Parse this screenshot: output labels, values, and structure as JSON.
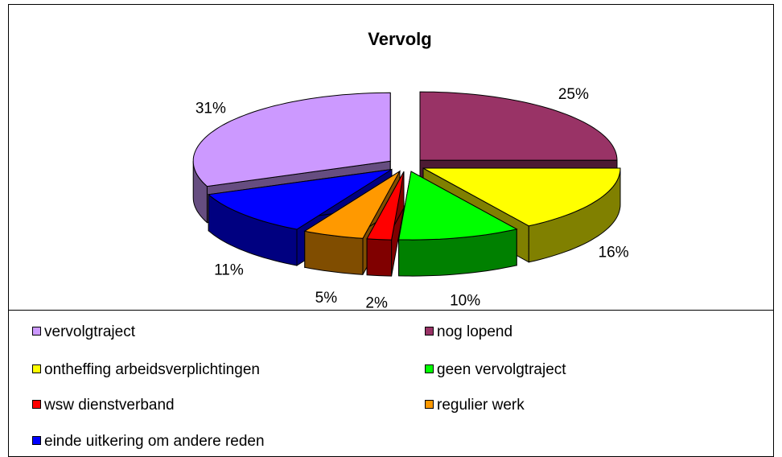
{
  "chart_data": {
    "type": "pie3d",
    "title": "Vervolg",
    "categories": [
      "vervolgtraject",
      "nog lopend",
      "ontheffing arbeidsverplichtingen",
      "geen vervolgtraject",
      "wsw dienstverband",
      "regulier werk",
      "einde uitkering om andere reden"
    ],
    "values": [
      31,
      25,
      16,
      10,
      2,
      5,
      11
    ],
    "value_labels": [
      "31%",
      "25%",
      "16%",
      "10%",
      "2%",
      "5%",
      "11%"
    ],
    "colors": [
      "#cc99ff",
      "#993366",
      "#ffff00",
      "#00ff00",
      "#ff0000",
      "#ff9900",
      "#0000ff"
    ],
    "legend": "bottom"
  }
}
